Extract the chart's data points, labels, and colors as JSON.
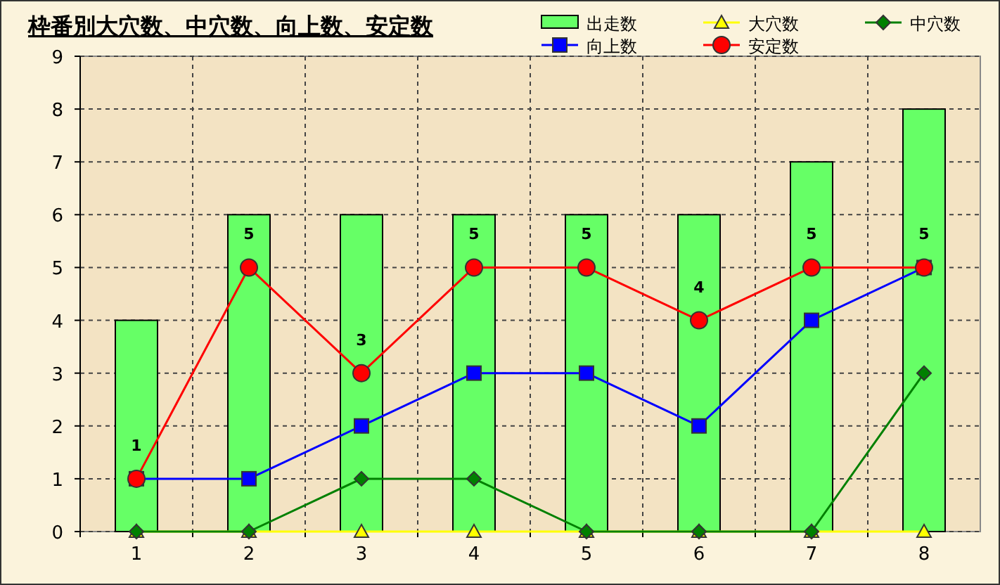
{
  "chart_data": {
    "type": "bar",
    "title": "枠番別大穴数、中穴数、向上数、安定数",
    "categories": [
      "1",
      "2",
      "3",
      "4",
      "5",
      "6",
      "7",
      "8"
    ],
    "ylim": [
      0,
      9
    ],
    "yticks": [
      0,
      1,
      2,
      3,
      4,
      5,
      6,
      7,
      8,
      9
    ],
    "grid": true,
    "legend": "top right",
    "series": [
      {
        "name": "出走数",
        "color": "#66ff66",
        "values": [
          4,
          6,
          6,
          6,
          6,
          6,
          7,
          8
        ]
      },
      {
        "name": "大穴数",
        "type": "line",
        "color": "#ffff00",
        "marker": "triangle",
        "values": [
          0,
          0,
          0,
          0,
          0,
          0,
          0,
          0
        ]
      },
      {
        "name": "中穴数",
        "type": "line",
        "color": "#008000",
        "marker": "diamond",
        "values": [
          0,
          0,
          1,
          1,
          0,
          0,
          0,
          3
        ]
      },
      {
        "name": "向上数",
        "type": "line",
        "color": "#0000ff",
        "marker": "square",
        "values": [
          1,
          1,
          2,
          3,
          3,
          2,
          4,
          5
        ]
      },
      {
        "name": "安定数",
        "type": "line",
        "color": "#ff0000",
        "marker": "circle",
        "values": [
          1,
          5,
          3,
          5,
          5,
          4,
          5,
          5
        ],
        "value_labels": [
          "1",
          "5",
          "3",
          "5",
          "5",
          "4",
          "5",
          "5"
        ]
      }
    ]
  }
}
